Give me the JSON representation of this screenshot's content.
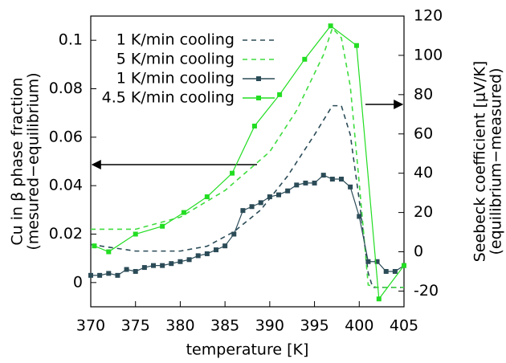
{
  "chart_data": {
    "type": "line",
    "x_label": "temperature [K]",
    "y_label": [
      "Cu in β phase fraction",
      "(mesured−equilibrium)"
    ],
    "y2_label": [
      "Seebeck coefficient [μV/K]",
      "(equilibrium−measured)"
    ],
    "xlim": [
      370,
      405
    ],
    "xticks": [
      370,
      375,
      380,
      385,
      390,
      395,
      400,
      405
    ],
    "ylim": [
      -0.01,
      0.11
    ],
    "yticks": [
      0,
      0.02,
      0.04,
      0.06,
      0.08,
      0.1
    ],
    "y2lim": [
      -28,
      120
    ],
    "y2ticks": [
      -20,
      0,
      20,
      40,
      60,
      80,
      100,
      120
    ],
    "grid": false,
    "legend": "upper left",
    "series": [
      {
        "name": "1 K/min cooling",
        "color": "#2b4b57",
        "style": "dashed",
        "axis": "y",
        "x": [
          370,
          375,
          380,
          383,
          386,
          389,
          392,
          395,
          397,
          398,
          399,
          400,
          401,
          401.5,
          405
        ],
        "values": [
          0.0157,
          0.013,
          0.013,
          0.015,
          0.021,
          0.03,
          0.044,
          0.061,
          0.073,
          0.073,
          0.061,
          0.034,
          0.004,
          -0.002,
          -0.002
        ]
      },
      {
        "name": "5 K/min cooling",
        "color": "#3fdc3f",
        "style": "dashed",
        "axis": "y",
        "x": [
          370,
          375,
          380,
          385,
          390,
          393,
          396,
          397,
          398,
          399,
          400,
          401,
          402,
          405
        ],
        "values": [
          0.022,
          0.022,
          0.027,
          0.038,
          0.054,
          0.071,
          0.094,
          0.105,
          0.101,
          0.081,
          0.041,
          -0.001,
          -0.002,
          -0.002
        ]
      },
      {
        "name": "1 K/min cooling",
        "color": "#2b4b57",
        "style": "points",
        "axis": "y2",
        "x": [
          370,
          371,
          372,
          373,
          374,
          375,
          376,
          377,
          378,
          379,
          380,
          381,
          382,
          383,
          384,
          385,
          386,
          387,
          388,
          389,
          390,
          391,
          392,
          393,
          394,
          395,
          396,
          397,
          398,
          399,
          400,
          401,
          402,
          403,
          404,
          405
        ],
        "values": [
          -12,
          -12,
          -11,
          -12,
          -9,
          -10,
          -8,
          -7,
          -7,
          -6,
          -5,
          -4,
          -2,
          -1,
          1,
          3,
          9,
          21,
          23,
          25,
          28,
          29,
          31,
          34,
          35,
          35,
          39,
          37,
          37,
          33,
          18,
          -5,
          -5,
          -10,
          -10,
          -7
        ]
      },
      {
        "name": "4.5 K/min cooling",
        "color": "#22dd22",
        "style": "points",
        "axis": "y2",
        "x": [
          370.4,
          372,
          375,
          378,
          380.4,
          383,
          385.8,
          388.3,
          391.1,
          393.9,
          396.8,
          399.7,
          402.2,
          405
        ],
        "values": [
          3,
          0,
          9,
          13,
          20,
          28,
          40,
          64,
          80,
          98,
          115,
          105,
          -24,
          -7
        ]
      }
    ]
  }
}
